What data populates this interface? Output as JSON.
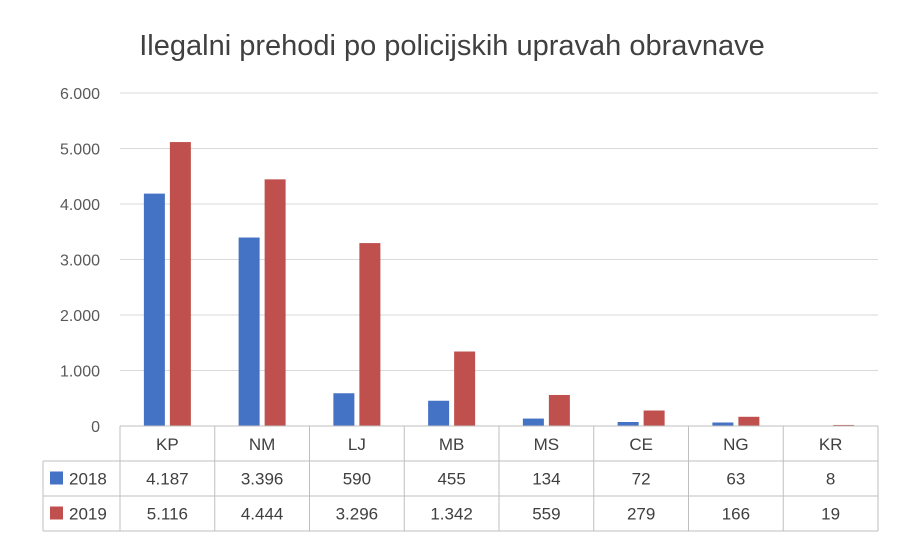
{
  "chart_data": {
    "type": "bar",
    "title": "Ilegalni prehodi po policijskih upravah obravnave",
    "categories": [
      "KP",
      "NM",
      "LJ",
      "MB",
      "MS",
      "CE",
      "NG",
      "KR"
    ],
    "series": [
      {
        "name": "2018",
        "color": "#4472C4",
        "values": [
          4187,
          3396,
          590,
          455,
          134,
          72,
          63,
          8
        ],
        "labels": [
          "4.187",
          "3.396",
          "590",
          "455",
          "134",
          "72",
          "63",
          "8"
        ]
      },
      {
        "name": "2019",
        "color": "#C0504D",
        "values": [
          5116,
          4444,
          3296,
          1342,
          559,
          279,
          166,
          19
        ],
        "labels": [
          "5.116",
          "4.444",
          "3.296",
          "1.342",
          "559",
          "279",
          "166",
          "19"
        ]
      }
    ],
    "ylim": [
      0,
      6000
    ],
    "yticks": [
      0,
      1000,
      2000,
      3000,
      4000,
      5000,
      6000
    ],
    "ytick_labels": [
      "0",
      "1.000",
      "2.000",
      "3.000",
      "4.000",
      "5.000",
      "6.000"
    ],
    "grid": true,
    "legend": "data-table",
    "data_table": true
  }
}
